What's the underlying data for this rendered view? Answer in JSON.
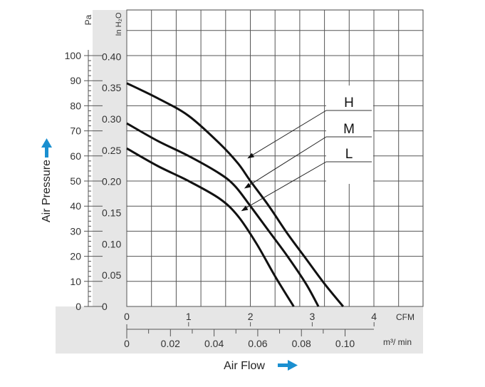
{
  "chart_data": {
    "type": "line",
    "title": "",
    "xlabel": "Air Flow",
    "ylabel": "Air Pressure",
    "x_unit_primary": "CFM",
    "x_unit_secondary": "m³/ min",
    "y_unit_primary": "Pa",
    "y_unit_secondary": "In H₂O",
    "xlim": [
      0,
      4.8
    ],
    "ylim": [
      0,
      118
    ],
    "x_ticks_primary": [
      "0",
      "1",
      "2",
      "3",
      "4"
    ],
    "x_ticks_secondary": [
      "0",
      "0.02",
      "0.04",
      "0.06",
      "0.08",
      "0.10"
    ],
    "y_ticks_primary": [
      "0",
      "10",
      "20",
      "30",
      "40",
      "50",
      "60",
      "70",
      "80",
      "90",
      "100"
    ],
    "y_ticks_secondary": [
      "0",
      "0.05",
      "0.10",
      "0.15",
      "0.20",
      "0.25",
      "0.30",
      "0.35",
      "0.40"
    ],
    "grid": true,
    "legend_placement": "right, with leader arrows",
    "series": [
      {
        "name": "H",
        "x": [
          0,
          0.5,
          1.0,
          1.5,
          1.8,
          2.0,
          2.3,
          2.6,
          2.9,
          3.2,
          3.5
        ],
        "y": [
          89,
          83,
          76,
          65,
          57,
          50,
          40,
          29,
          19,
          9,
          0
        ]
      },
      {
        "name": "M",
        "x": [
          0,
          0.5,
          1.0,
          1.5,
          1.75,
          2.0,
          2.3,
          2.6,
          2.9,
          3.1
        ],
        "y": [
          73,
          66,
          60,
          53,
          48,
          40,
          30,
          20,
          9,
          0
        ]
      },
      {
        "name": "L",
        "x": [
          0,
          0.5,
          1.0,
          1.5,
          1.8,
          2.1,
          2.4,
          2.7
        ],
        "y": [
          63,
          56,
          50,
          43,
          36,
          25,
          12,
          0
        ]
      }
    ]
  },
  "colors": {
    "panel": "#e6e6e6",
    "grid": "#555555",
    "curve": "#111111",
    "accent_arrow": "#1a8fd0"
  }
}
